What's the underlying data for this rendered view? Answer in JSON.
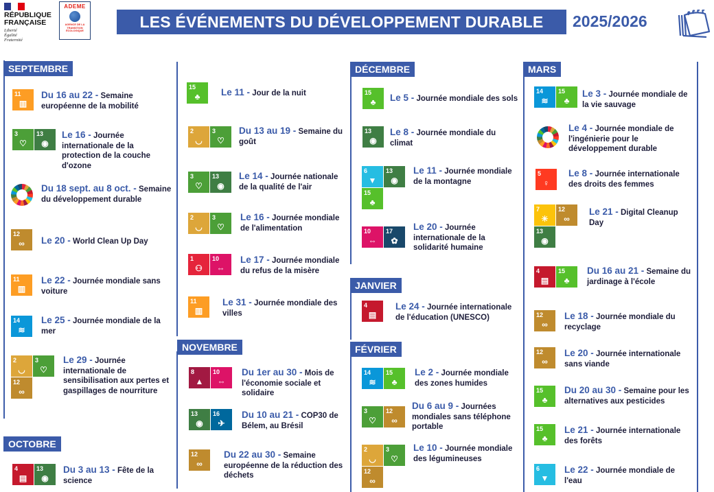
{
  "header": {
    "republique_logo": "RÉPUBLIQUE FRANÇAISE",
    "republique_motto": "Liberté Égalité Fraternité",
    "ademe_logo": "ADEME",
    "ademe_subtitle": "AGENCE DE LA TRANSITION ÉCOLOGIQUE",
    "title": "LES ÉVÉNEMENTS DU DÉVELOPPEMENT DURABLE",
    "year": "2025/2026",
    "calendar_icon": "calendar-icon"
  },
  "colors": {
    "brand_blue": "#3b5ba9",
    "text_dark": "#1d1d3a"
  },
  "sdg_colors": {
    "1": "#E5243B",
    "2": "#DDA63A",
    "3": "#4C9F38",
    "4": "#C5192D",
    "5": "#FF3A21",
    "6": "#26BDE2",
    "7": "#FCC30B",
    "8": "#A21942",
    "9": "#FD6925",
    "10": "#DD1367",
    "11": "#FD9D24",
    "12": "#BF8B2E",
    "13": "#3F7E44",
    "14": "#0A97D9",
    "15": "#56C02B",
    "16": "#00689D",
    "17": "#19486A"
  },
  "months": [
    "SEPTEMBRE",
    "OCTOBRE",
    "NOVEMBRE",
    "DÉCEMBRE",
    "JANVIER",
    "FÉVRIER",
    "MARS"
  ],
  "events": [
    {
      "date": "Du 16 au 22 -",
      "desc": "Semaine européenne de la mobilité",
      "goals": [
        11
      ]
    },
    {
      "date": "Le 16 -",
      "desc": "Journée internationale de la protection de la couche d'ozone",
      "goals": [
        3,
        13
      ]
    },
    {
      "date": "Du 18 sept. au 8 oct. -",
      "desc": "Semaine du développement durable",
      "goals": [],
      "icon": "sdg-wheel-icon"
    },
    {
      "date": "Le 20 -",
      "desc": "World Clean Up Day",
      "goals": [
        12
      ]
    },
    {
      "date": "Le 22 -",
      "desc": "Journée mondiale sans voiture",
      "goals": [
        11
      ]
    },
    {
      "date": "Le 25 -",
      "desc": "Journée mondiale de la mer",
      "goals": [
        14
      ]
    },
    {
      "date": "Le 29 -",
      "desc": "Journée internationale de sensibilisation aux pertes et gaspillages de nourriture",
      "goals": [
        2,
        3,
        12
      ]
    },
    {
      "date": "Du 3 au 13 -",
      "desc": "Fête de la science",
      "goals": [
        4,
        13
      ]
    },
    {
      "date": "Le 11 -",
      "desc": "Jour de la nuit",
      "goals": [
        15
      ]
    },
    {
      "date": "Du 13 au 19 -",
      "desc": "Semaine du goût",
      "goals": [
        2,
        3
      ]
    },
    {
      "date": "Le 14 -",
      "desc": "Journée nationale de la qualité de l'air",
      "goals": [
        3,
        13
      ]
    },
    {
      "date": "Le 16 -",
      "desc": "Journée mondiale de l'alimentation",
      "goals": [
        2,
        3
      ]
    },
    {
      "date": "Le 17 -",
      "desc": "Journée mondiale du refus de la misère",
      "goals": [
        1,
        10
      ]
    },
    {
      "date": "Le 31 -",
      "desc": "Journée mondiale des villes",
      "goals": [
        11
      ]
    },
    {
      "date": "Du 1er au 30 -",
      "desc": "Mois de l'économie sociale et solidaire",
      "goals": [
        8,
        10
      ]
    },
    {
      "date": "Du 10 au 21 -",
      "desc": "COP30 de Bélem, au Brésil",
      "goals": [
        13,
        16
      ]
    },
    {
      "date": "Du 22 au 30 -",
      "desc": "Semaine européenne de la réduction des déchets",
      "goals": [
        12
      ]
    },
    {
      "date": "Le 5 -",
      "desc": "Journée mondiale des sols",
      "goals": [
        15
      ]
    },
    {
      "date": "Le 8 -",
      "desc": "Journée mondiale du climat",
      "goals": [
        13
      ]
    },
    {
      "date": "Le 11 -",
      "desc": "Journée mondiale de la montagne",
      "goals": [
        6,
        13,
        15
      ]
    },
    {
      "date": "Le 20 -",
      "desc": "Journée internationale de la solidarité humaine",
      "goals": [
        10,
        17
      ]
    },
    {
      "date": "Le 24 -",
      "desc": "Journée internationale de l'éducation (UNESCO)",
      "goals": [
        4
      ]
    },
    {
      "date": "Le 2 -",
      "desc": "Journée mondiale des zones humides",
      "goals": [
        14,
        15
      ]
    },
    {
      "date": "Du 6 au 9 -",
      "desc": "Journées mondiales sans téléphone portable",
      "goals": [
        3,
        12
      ]
    },
    {
      "date": "Le 10 -",
      "desc": "Journée mondiale des légumineuses",
      "goals": [
        2,
        3,
        12
      ]
    },
    {
      "date": "Le 3 -",
      "desc": "Journée mondiale de la vie sauvage",
      "goals": [
        14,
        15
      ]
    },
    {
      "date": "Le 4 -",
      "desc": "Journée mondiale de l'ingénierie pour le développement durable",
      "goals": [],
      "icon": "sdg-wheel-icon"
    },
    {
      "date": "Le 8 -",
      "desc": "Journée internationale des droits des femmes",
      "goals": [
        5
      ]
    },
    {
      "date": "Le 21 -",
      "desc": "Digital Cleanup Day",
      "goals": [
        7,
        12,
        13
      ]
    },
    {
      "date": "Du 16 au 21 -",
      "desc": "Semaine du jardinage à l'école",
      "goals": [
        4,
        15
      ]
    },
    {
      "date": "Le 18 -",
      "desc": "Journée mondiale du recyclage",
      "goals": [
        12
      ]
    },
    {
      "date": "Le 20 -",
      "desc": "Journée internationale sans viande",
      "goals": [
        12
      ]
    },
    {
      "date": "Du 20 au 30 -",
      "desc": "Semaine pour les alternatives aux pesticides",
      "goals": [
        15
      ]
    },
    {
      "date": "Le 21 -",
      "desc": "Journée internationale des forêts",
      "goals": [
        15
      ]
    },
    {
      "date": "Le 22 -",
      "desc": "Journée mondiale de l'eau",
      "goals": [
        6
      ]
    }
  ]
}
